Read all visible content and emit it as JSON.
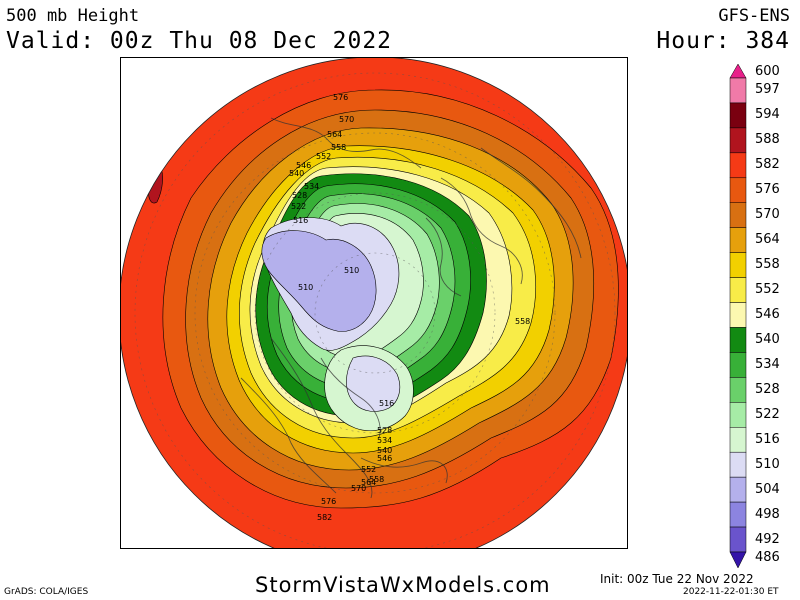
{
  "header": {
    "title": "500 mb Height",
    "valid": "Valid: 00z Thu 08 Dec 2022",
    "model": "GFS-ENS",
    "hour": "Hour: 384"
  },
  "legend": {
    "levels": [
      "600",
      "597",
      "594",
      "588",
      "582",
      "576",
      "570",
      "564",
      "558",
      "552",
      "546",
      "540",
      "534",
      "528",
      "522",
      "516",
      "510",
      "504",
      "498",
      "492",
      "486"
    ],
    "colors": [
      "#e8208a",
      "#f07aa8",
      "#7a0010",
      "#b0141e",
      "#f53a16",
      "#e85810",
      "#d87012",
      "#e6a00c",
      "#f2d000",
      "#f8ec48",
      "#fcf8b0",
      "#128a12",
      "#38b038",
      "#6ad06a",
      "#a6eca6",
      "#d6f6d0",
      "#dcdcf4",
      "#b4b0ec",
      "#8c84e0",
      "#6a54cc",
      "#3414a8"
    ]
  },
  "map": {
    "contour_labels": [
      "576",
      "570",
      "564",
      "558",
      "552",
      "546",
      "540",
      "534",
      "528",
      "522",
      "516",
      "510",
      "510",
      "516",
      "528",
      "534",
      "540",
      "546",
      "552",
      "558",
      "564",
      "570",
      "576",
      "582",
      "558"
    ]
  },
  "footer": {
    "site": "StormVistaWxModels.com",
    "grads": "GrADS: COLA/IGES",
    "init": "Init: 00z Tue 22 Nov 2022",
    "timestamp": "2022-11-22-01:30 ET"
  }
}
